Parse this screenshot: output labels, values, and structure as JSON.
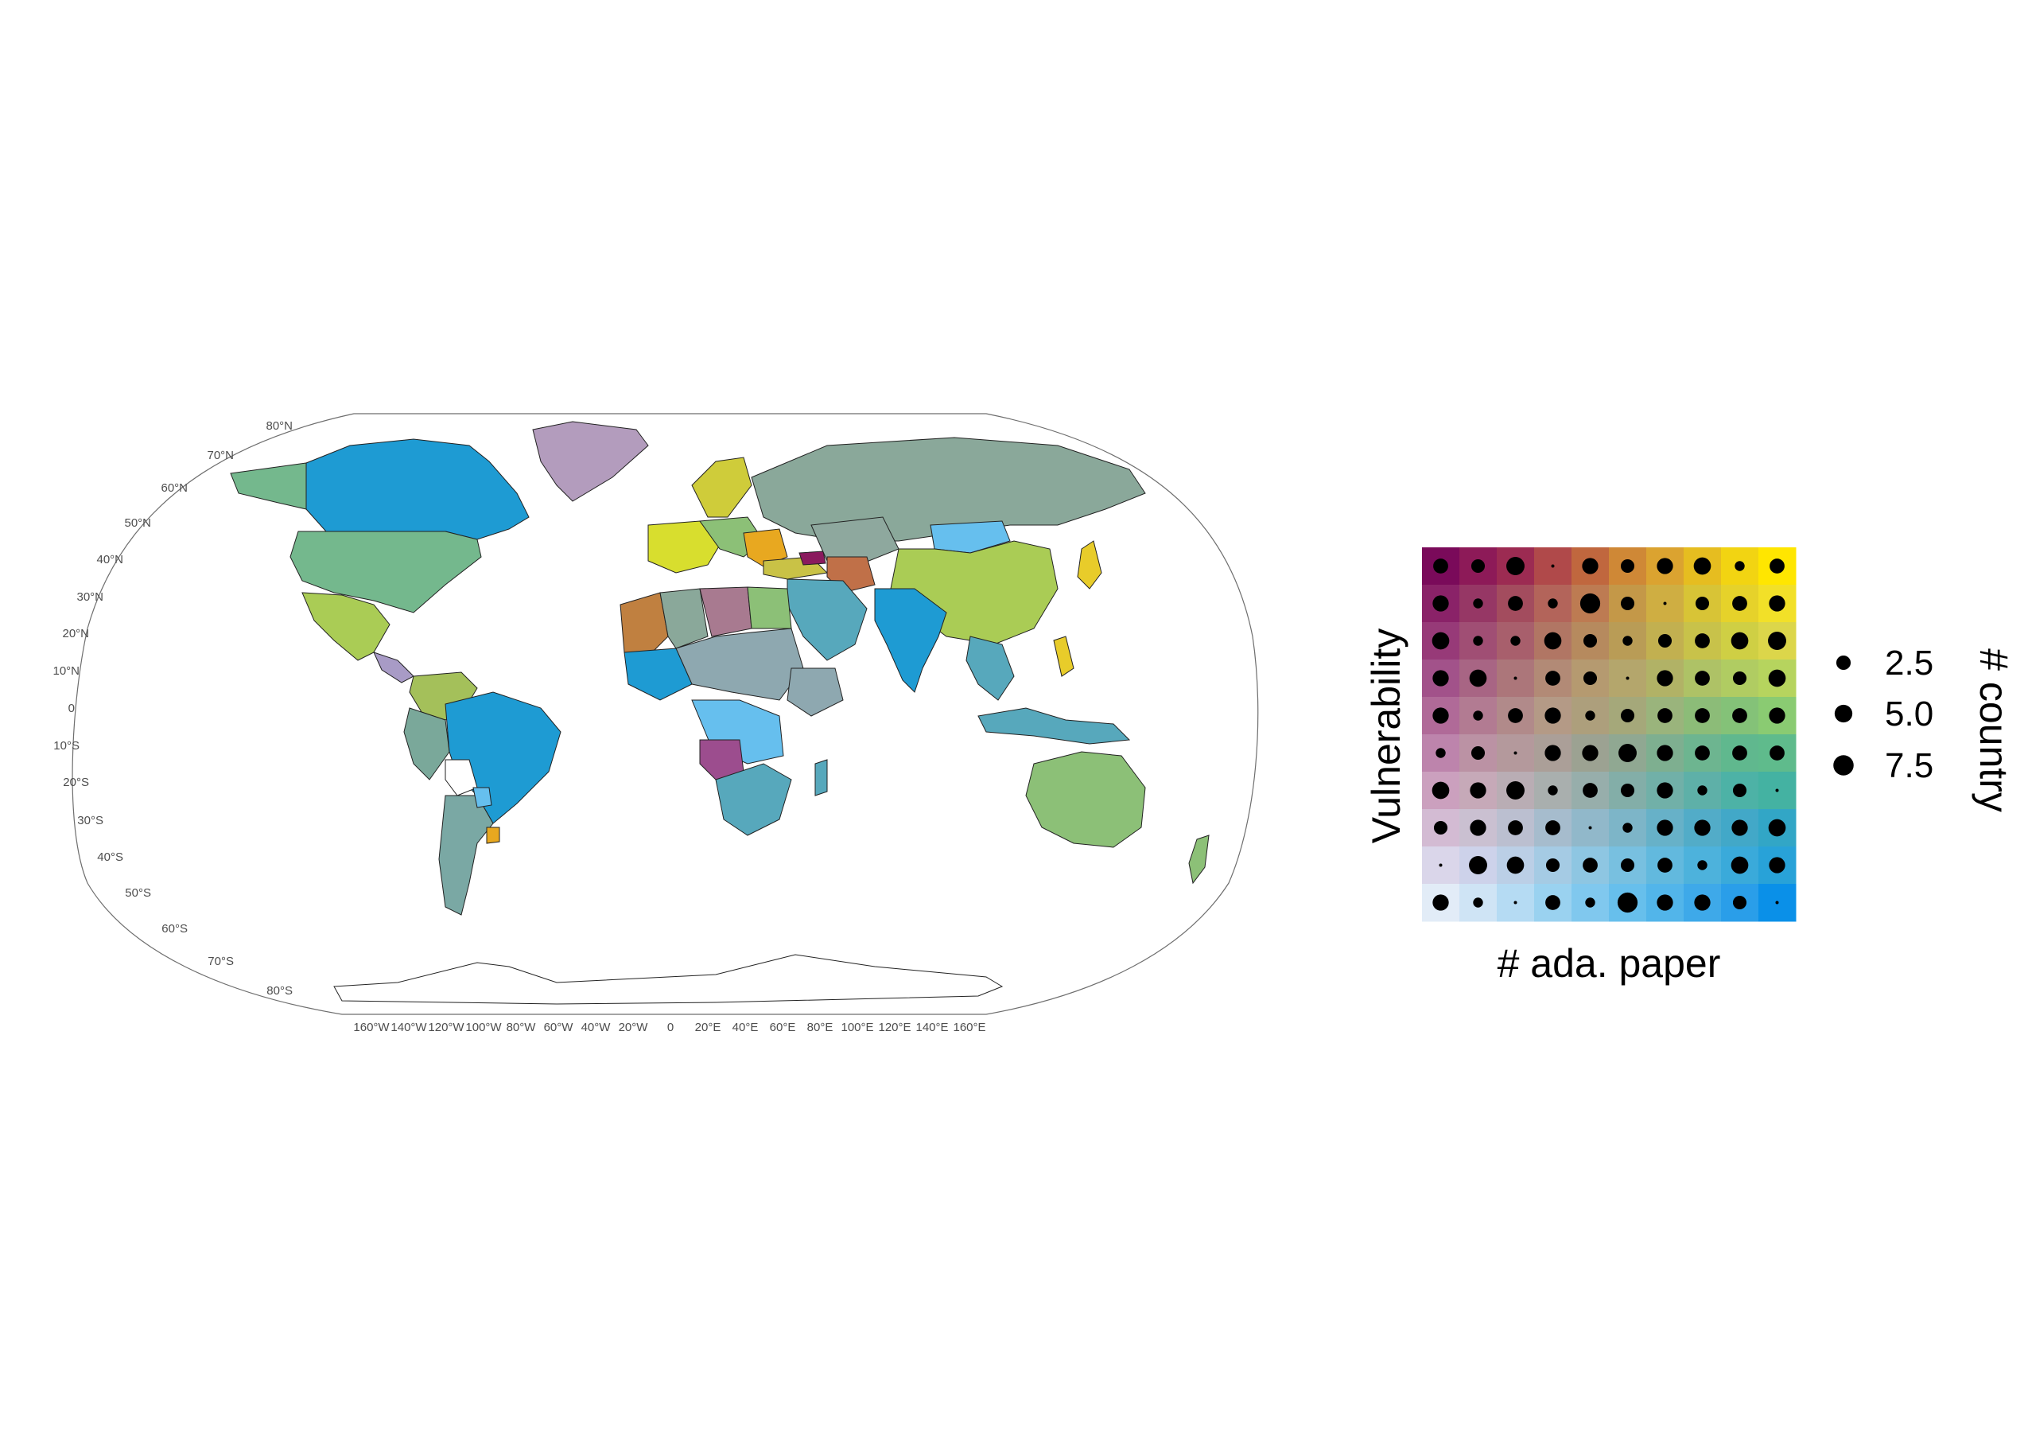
{
  "map": {
    "projection": "Robinson",
    "latitude_labels": [
      "80°N",
      "70°N",
      "60°N",
      "50°N",
      "40°N",
      "30°N",
      "20°N",
      "10°N",
      "0",
      "10°S",
      "20°S",
      "30°S",
      "40°S",
      "50°S",
      "60°S",
      "70°S",
      "80°S"
    ],
    "longitude_labels": [
      "160°W",
      "140°W",
      "120°W",
      "100°W",
      "80°W",
      "60°W",
      "40°W",
      "20°W",
      "0",
      "20°E",
      "40°E",
      "60°E",
      "80°E",
      "100°E",
      "120°E",
      "140°E",
      "160°E"
    ]
  },
  "bivariate_legend": {
    "x_title": "# ada. paper",
    "y_title": "Vulnerability",
    "size_title": "# country",
    "size_labels": [
      "2.5",
      "5.0",
      "7.5"
    ],
    "corner_colors": {
      "low_paper_high_vuln": "#7a0a5c",
      "high_paper_high_vuln": "#ffe600",
      "low_paper_low_vuln": "#e2ecf7",
      "high_paper_low_vuln": "#0a90e8"
    },
    "cell_colors": [
      [
        "#7a0a5a",
        "#8d1a58",
        "#9c2b52",
        "#b0494a",
        "#c0673e",
        "#cf8836",
        "#dba330",
        "#e6bd20",
        "#f2d412",
        "#ffe600"
      ],
      [
        "#8a2268",
        "#963765",
        "#a34c5e",
        "#b3645a",
        "#bd7b52",
        "#c49848",
        "#cfae42",
        "#d8c436",
        "#e6d22a",
        "#f2e028"
      ],
      [
        "#973a78",
        "#a04e74",
        "#a85f6c",
        "#b17664",
        "#b68a5e",
        "#b99c56",
        "#c2b050",
        "#c8c24a",
        "#cfcf44",
        "#dcd64a"
      ],
      [
        "#a2528a",
        "#a86584",
        "#ac767a",
        "#b28a76",
        "#b59a70",
        "#b4a66c",
        "#b1b266",
        "#aec266",
        "#b0cc62",
        "#b6d45e"
      ],
      [
        "#b06a98",
        "#b27b92",
        "#b18a8a",
        "#b49a86",
        "#ad9f7c",
        "#a5a87a",
        "#9ab47c",
        "#8cbc78",
        "#84c278",
        "#8acb72"
      ],
      [
        "#bd84ac",
        "#bb92a4",
        "#b4999c",
        "#ab9f98",
        "#9ca292",
        "#90a892",
        "#7eaf90",
        "#6db590",
        "#60b88e",
        "#5fbb8c"
      ],
      [
        "#cba0be",
        "#c6a9b8",
        "#b9adb4",
        "#a9afae",
        "#97aeab",
        "#83aea8",
        "#71b0a8",
        "#5eb0a8",
        "#4db2a6",
        "#44b2a2"
      ],
      [
        "#d3bbd3",
        "#cac0d1",
        "#bbbfd0",
        "#a6bccd",
        "#91b8ca",
        "#7db5c8",
        "#67b1c8",
        "#52acc8",
        "#42a8c8",
        "#32a6c6"
      ],
      [
        "#dad6ea",
        "#cdd2ea",
        "#bbcfe6",
        "#a5cbe4",
        "#8ec6e2",
        "#78c0e0",
        "#62b9de",
        "#4db2dc",
        "#3aaada",
        "#28a2d8"
      ],
      [
        "#e2ecf7",
        "#cfe4f5",
        "#b5dbf3",
        "#9ad2f0",
        "#80c8ee",
        "#67bfec",
        "#52b5ea",
        "#3ea9e9",
        "#2a9ee9",
        "#0a90e8"
      ]
    ],
    "dot_counts": [
      [
        4,
        3,
        7,
        0,
        5,
        3,
        5,
        6,
        1,
        4
      ],
      [
        5,
        1,
        4,
        1,
        9,
        3,
        0,
        3,
        4,
        5
      ],
      [
        6,
        1,
        1,
        6,
        3,
        1,
        3,
        4,
        6,
        7
      ],
      [
        5,
        6,
        0,
        4,
        3,
        0,
        5,
        4,
        3,
        6
      ],
      [
        5,
        1,
        4,
        5,
        1,
        3,
        4,
        4,
        4,
        5
      ],
      [
        1,
        3,
        0,
        5,
        5,
        7,
        5,
        4,
        4,
        4
      ],
      [
        6,
        5,
        7,
        1,
        4,
        3,
        5,
        1,
        3,
        0
      ],
      [
        3,
        5,
        4,
        4,
        0,
        1,
        5,
        5,
        5,
        6
      ],
      [
        0,
        7,
        6,
        3,
        4,
        3,
        4,
        1,
        6,
        5
      ],
      [
        5,
        1,
        0,
        4,
        1,
        9,
        5,
        5,
        3,
        0
      ]
    ]
  }
}
